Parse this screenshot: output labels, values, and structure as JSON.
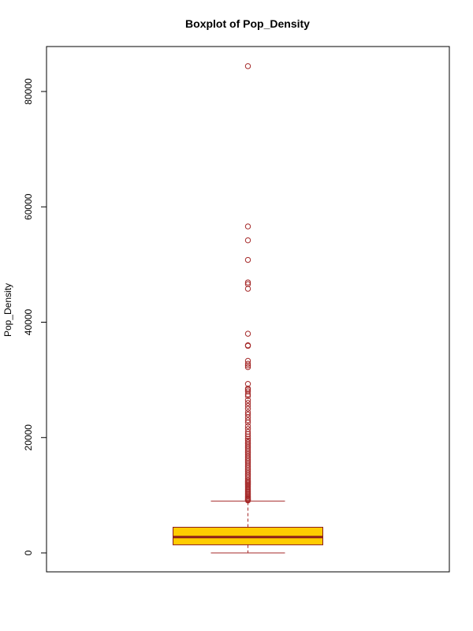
{
  "chart_data": {
    "type": "boxplot",
    "title": "Boxplot of Pop_Density",
    "ylabel": "Pop_Density",
    "xlabel": "",
    "ylim": [
      0,
      85000
    ],
    "yticks": [
      0,
      20000,
      40000,
      60000,
      80000
    ],
    "ytick_labels": [
      "0",
      "20000",
      "40000",
      "60000",
      "80000"
    ],
    "grid": false,
    "colors": {
      "box_fill": "#FFCC00",
      "box_border": "#8B1A1A",
      "median": "#8B1A1A",
      "whisker": "#A52A2A",
      "outlier": "#A52A2A"
    },
    "stats": {
      "min": 0,
      "q1": 1400,
      "median": 2750,
      "q3": 4450,
      "whisker_low": 0,
      "whisker_high": 9000
    },
    "outliers": [
      84400,
      56600,
      54200,
      50800,
      46900,
      46600,
      45800,
      38000,
      36000,
      35900,
      33300,
      32800,
      32500,
      32200,
      29300,
      28500,
      28300,
      28000,
      27500,
      27200,
      26500,
      26000,
      25500,
      25000,
      24400,
      24000,
      23500,
      23000,
      22600,
      22000,
      21500,
      21000,
      20600,
      20200,
      19800,
      19500,
      19200,
      18900,
      18600,
      18300,
      18000,
      17700,
      17400,
      17100,
      16800,
      16500,
      16200,
      15900,
      15600,
      15300,
      15000,
      14700,
      14400,
      14100,
      13800,
      13500,
      13200,
      12900,
      12600,
      12400,
      12200,
      12000,
      11800,
      11600,
      11400,
      11200,
      11000,
      10800,
      10600,
      10400,
      10200,
      10000,
      9800,
      9600,
      9450,
      9300,
      9200,
      9100
    ]
  }
}
